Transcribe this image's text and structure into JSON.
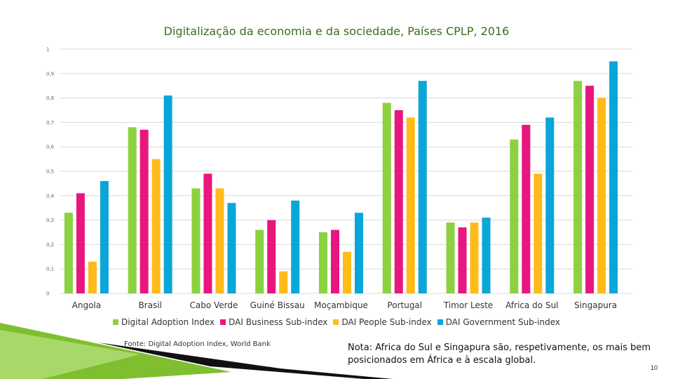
{
  "slide": {
    "source": "Fonte: Digital Adoption Index, World Bank",
    "note": "Nota: Africa do Sul e Singapura são, respetivamente, os mais bem posicionados em África e à escala global.",
    "page_number": "10"
  },
  "chart_data": {
    "type": "bar",
    "title": "Digitalização da economia e da sociedade, Países CPLP, 2016",
    "xlabel": "",
    "ylabel": "",
    "ylim": [
      0,
      1
    ],
    "yticks": [
      0,
      0.1,
      0.2,
      0.3,
      0.4,
      0.5,
      0.6,
      0.7,
      0.8,
      0.9,
      1
    ],
    "ytick_labels": [
      "0",
      "0,1",
      "0,2",
      "0,3",
      "0,4",
      "0,5",
      "0,6",
      "0,7",
      "0,8",
      "0,9",
      "1"
    ],
    "grid": true,
    "legend_position": "bottom",
    "categories": [
      "Angola",
      "Brasil",
      "Cabo Verde",
      "Guiné Bissau",
      "Moçambique",
      "Portugal",
      "Timor Leste",
      "Africa do Sul",
      "Singapura"
    ],
    "series": [
      {
        "name": "Digital Adoption Index",
        "color": "#8cd13f",
        "values": [
          0.33,
          0.68,
          0.43,
          0.26,
          0.25,
          0.78,
          0.29,
          0.63,
          0.87
        ]
      },
      {
        "name": "DAI Business Sub-index",
        "color": "#e8167f",
        "values": [
          0.41,
          0.67,
          0.49,
          0.3,
          0.26,
          0.75,
          0.27,
          0.69,
          0.85
        ]
      },
      {
        "name": "DAI People Sub-index",
        "color": "#ffbb1a",
        "values": [
          0.13,
          0.55,
          0.43,
          0.09,
          0.17,
          0.72,
          0.29,
          0.49,
          0.8
        ]
      },
      {
        "name": "DAI Government Sub-index",
        "color": "#0aa6d8",
        "values": [
          0.46,
          0.81,
          0.37,
          0.38,
          0.33,
          0.87,
          0.31,
          0.72,
          0.95
        ]
      }
    ]
  }
}
